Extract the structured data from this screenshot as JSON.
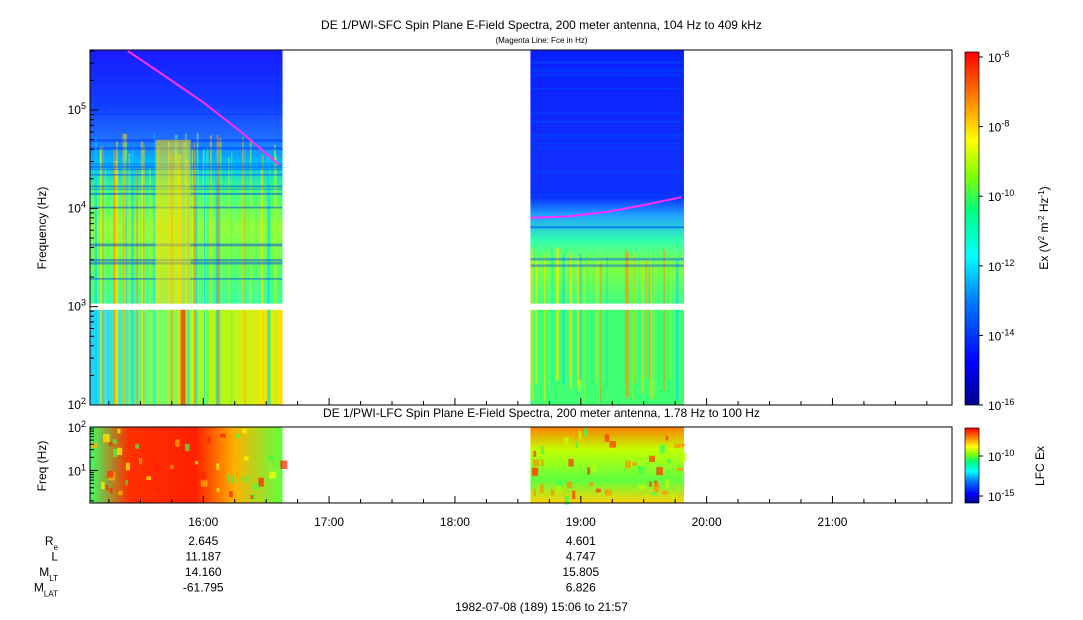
{
  "header": {
    "title": "DE 1/PWI-SFC  Spin Plane E-Field Spectra, 200 meter antenna, 104 Hz to 409 kHz",
    "subtitle": "(Magenta Line: Fce in Hz)",
    "lfc_title": "DE 1/PWI-LFC  Spin Plane E-Field Spectra, 200 meter antenna, 1.78 Hz to 100 Hz",
    "date_range": "1982-07-08 (189) 15:06 to 21:57"
  },
  "chart_data": [
    {
      "type": "heatmap",
      "name": "sfc",
      "title": "DE 1/PWI-SFC  Spin Plane E-Field Spectra, 200 meter antenna, 104 Hz to 409 kHz",
      "ylabel": "Frequency (Hz)",
      "yscale": "log",
      "ylim": [
        100,
        409000
      ],
      "xlim_hours": [
        15.1,
        21.95
      ],
      "y_ticks": [
        {
          "base": "10",
          "exp": "2",
          "value": 100
        },
        {
          "base": "10",
          "exp": "3",
          "value": 1000
        },
        {
          "base": "10",
          "exp": "4",
          "value": 10000
        },
        {
          "base": "10",
          "exp": "5",
          "value": 100000
        }
      ],
      "colorbar": {
        "label_prefix": "Ex (V",
        "label": "Ex (V2 m-2 Hz-1)",
        "scale": "log",
        "range": [
          1e-16,
          1e-06
        ],
        "ticks": [
          {
            "base": "10",
            "exp": "-6"
          },
          {
            "base": "10",
            "exp": "-8"
          },
          {
            "base": "10",
            "exp": "-10"
          },
          {
            "base": "10",
            "exp": "-12"
          },
          {
            "base": "10",
            "exp": "-14"
          },
          {
            "base": "10",
            "exp": "-16"
          }
        ]
      },
      "data_segments_hours": [
        [
          15.1,
          16.63
        ],
        [
          18.6,
          19.82
        ]
      ],
      "fce_line": [
        {
          "t": 15.4,
          "f": 400000
        },
        {
          "t": 15.7,
          "f": 220000
        },
        {
          "t": 16.0,
          "f": 120000
        },
        {
          "t": 16.3,
          "f": 60000
        },
        {
          "t": 16.6,
          "f": 28000
        },
        {
          "t": 18.6,
          "f": 8000
        },
        {
          "t": 18.9,
          "f": 8300
        },
        {
          "t": 19.2,
          "f": 9200
        },
        {
          "t": 19.5,
          "f": 10800
        },
        {
          "t": 19.8,
          "f": 13000
        }
      ]
    },
    {
      "type": "heatmap",
      "name": "lfc",
      "title": "DE 1/PWI-LFC  Spin Plane E-Field Spectra, 200 meter antenna, 1.78 Hz to 100 Hz",
      "ylabel": "Freq (Hz)",
      "yscale": "log",
      "ylim": [
        1.78,
        100
      ],
      "y_ticks": [
        {
          "base": "10",
          "exp": "1",
          "value": 10
        },
        {
          "base": "10",
          "exp": "2",
          "value": 100
        }
      ],
      "colorbar": {
        "label": "LFC Ex",
        "ticks": [
          {
            "base": "10",
            "exp": "-10"
          },
          {
            "base": "10",
            "exp": "-15"
          }
        ]
      },
      "data_segments_hours": [
        [
          15.1,
          16.63
        ],
        [
          18.6,
          19.82
        ]
      ]
    }
  ],
  "x_axis": {
    "ticks": [
      {
        "label": "16:00",
        "hour": 16
      },
      {
        "label": "17:00",
        "hour": 17
      },
      {
        "label": "18:00",
        "hour": 18
      },
      {
        "label": "19:00",
        "hour": 19
      },
      {
        "label": "20:00",
        "hour": 20
      },
      {
        "label": "21:00",
        "hour": 21
      }
    ]
  },
  "ephemeris": {
    "rows": [
      {
        "main": "R",
        "sub": "e",
        "v1": "2.645",
        "v2": "4.601"
      },
      {
        "main": "L",
        "sub": "",
        "v1": "11.187",
        "v2": "4.747"
      },
      {
        "main": "M",
        "sub": "LT",
        "v1": "14.160",
        "v2": "15.805"
      },
      {
        "main": "M",
        "sub": "LAT",
        "v1": "-61.795",
        "v2": "6.826"
      }
    ]
  }
}
